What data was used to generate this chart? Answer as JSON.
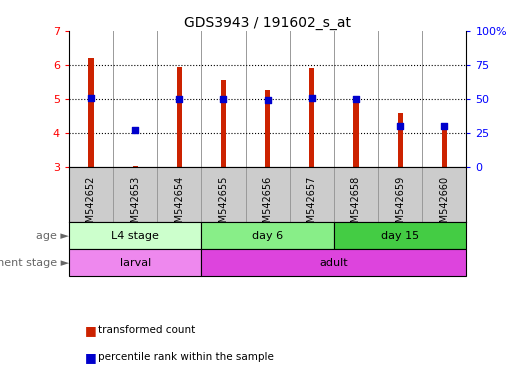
{
  "title": "GDS3943 / 191602_s_at",
  "samples": [
    "GSM542652",
    "GSM542653",
    "GSM542654",
    "GSM542655",
    "GSM542656",
    "GSM542657",
    "GSM542658",
    "GSM542659",
    "GSM542660"
  ],
  "transformed_count": [
    6.2,
    3.05,
    5.95,
    5.55,
    5.25,
    5.9,
    4.9,
    4.6,
    4.15
  ],
  "percentile_rank": [
    51,
    27,
    50,
    50,
    49,
    51,
    50,
    30,
    30
  ],
  "bar_bottom": 3.0,
  "ylim_left": [
    3,
    7
  ],
  "ylim_right": [
    0,
    100
  ],
  "yticks_left": [
    3,
    4,
    5,
    6,
    7
  ],
  "yticks_right": [
    0,
    25,
    50,
    75,
    100
  ],
  "ytick_labels_right": [
    "0",
    "25",
    "50",
    "75",
    "100%"
  ],
  "bar_color": "#cc2200",
  "dot_color": "#0000cc",
  "age_groups": [
    {
      "label": "L4 stage",
      "start": 0,
      "end": 3,
      "color": "#ccffcc"
    },
    {
      "label": "day 6",
      "start": 3,
      "end": 6,
      "color": "#88ee88"
    },
    {
      "label": "day 15",
      "start": 6,
      "end": 9,
      "color": "#44cc44"
    }
  ],
  "dev_stages": [
    {
      "label": "larval",
      "start": 0,
      "end": 3,
      "color": "#ee88ee"
    },
    {
      "label": "adult",
      "start": 3,
      "end": 9,
      "color": "#dd44dd"
    }
  ],
  "legend_bar_label": "transformed count",
  "legend_dot_label": "percentile rank within the sample",
  "age_label": "age",
  "dev_label": "development stage",
  "sample_col_color": "#cccccc",
  "plot_bg_color": "#ffffff",
  "col_divider_color": "#999999"
}
